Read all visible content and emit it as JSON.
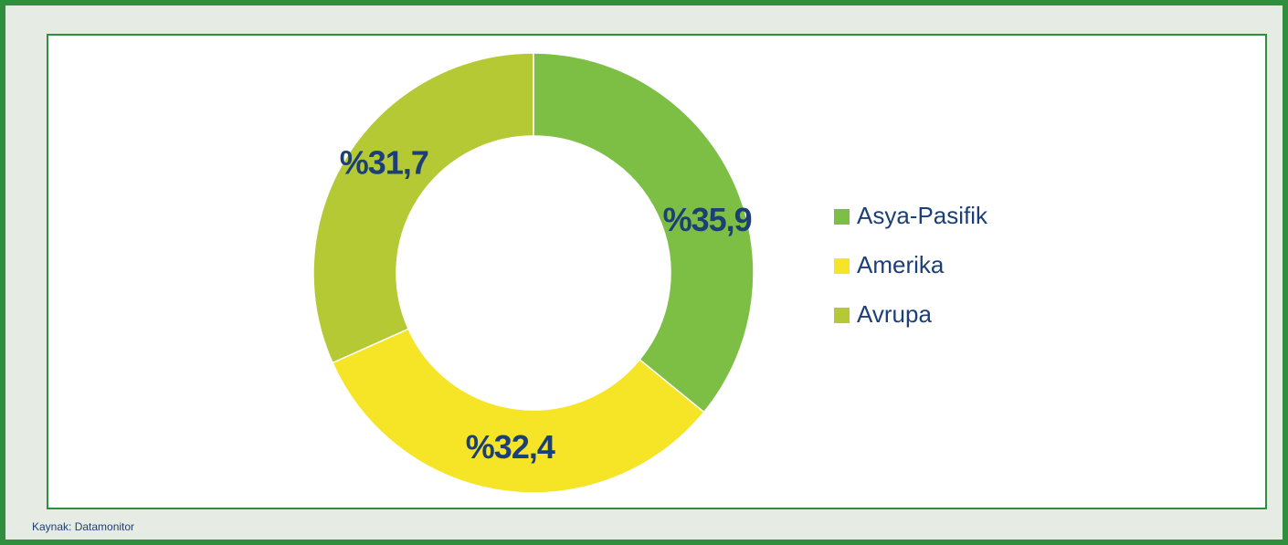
{
  "chart_data": {
    "type": "donut",
    "categories": [
      "Asya-Pasifik",
      "Amerika",
      "Avrupa"
    ],
    "values": [
      35.9,
      32.4,
      31.7
    ],
    "value_labels": [
      "%35,9",
      "%32,4",
      "%31,7"
    ],
    "colors": [
      "#7dbf45",
      "#f5e526",
      "#b5c935"
    ],
    "source": "Kaynak: Datamonitor"
  }
}
